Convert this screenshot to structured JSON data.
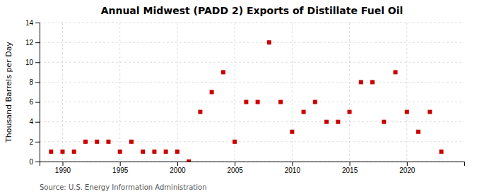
{
  "chart_data": {
    "type": "scatter",
    "title": "Annual Midwest (PADD 2) Exports of Distillate Fuel Oil",
    "ylabel": "Thousand Barrels per Day",
    "annotations": [
      "Source: U.S. Energy Information Administration"
    ],
    "x": [
      1989,
      1990,
      1991,
      1992,
      1993,
      1994,
      1995,
      1996,
      1997,
      1998,
      1999,
      2000,
      2001,
      2002,
      2003,
      2004,
      2005,
      2006,
      2007,
      2008,
      2009,
      2010,
      2011,
      2012,
      2013,
      2014,
      2015,
      2016,
      2017,
      2018,
      2019,
      2020,
      2021,
      2022,
      2023
    ],
    "values": [
      1,
      1,
      1,
      2,
      2,
      2,
      1,
      2,
      1,
      1,
      1,
      1,
      0,
      5,
      7,
      9,
      2,
      6,
      6,
      12,
      6,
      3,
      5,
      6,
      4,
      4,
      5,
      8,
      8,
      4,
      9,
      5,
      3,
      5,
      1
    ],
    "color": "#cc0000",
    "marker": "square",
    "xlim": [
      1988,
      2025
    ],
    "xticks": [
      1990,
      1995,
      2000,
      2005,
      2010,
      2015,
      2020
    ],
    "ylim": [
      0,
      14
    ],
    "yticks": [
      0,
      2,
      4,
      6,
      8,
      10,
      12,
      14
    ],
    "grid": true
  }
}
